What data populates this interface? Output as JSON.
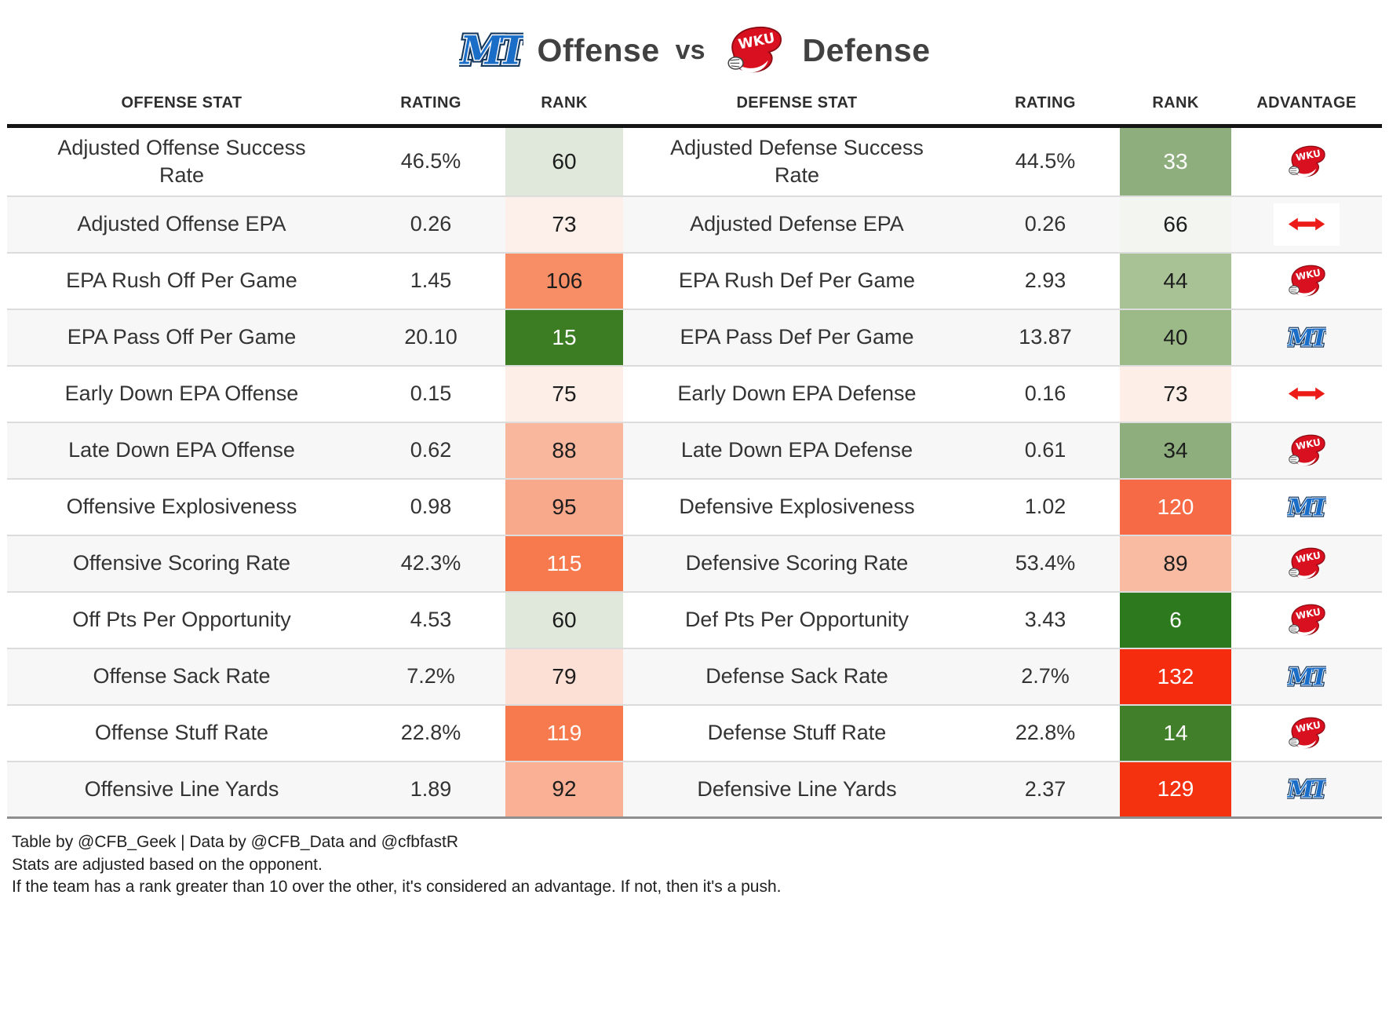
{
  "title": {
    "offense_label": "Offense",
    "vs_label": "vs",
    "defense_label": "Defense",
    "team1": "MT",
    "team2": "WKU"
  },
  "colors": {
    "mt_blue": "#1b6ec8",
    "wku_red": "#d8101f",
    "push_arrow_red": "#ed1b18",
    "row_stripe": "#f7f7f7",
    "header_rule": "#141414"
  },
  "table": {
    "columns": [
      "OFFENSE STAT",
      "RATING",
      "RANK",
      "DEFENSE STAT",
      "RATING",
      "RANK",
      "ADVANTAGE"
    ],
    "rows": [
      {
        "offense": {
          "stat": "Adjusted Offense Success Rate",
          "rating": "46.5%",
          "rank": "60",
          "rank_bg": "#dfe8da",
          "rank_text": "#1d1d1d"
        },
        "defense": {
          "stat": "Adjusted Defense Success Rate",
          "rating": "44.5%",
          "rank": "33",
          "rank_bg": "#8fae7e",
          "rank_text": "#ffffff"
        },
        "advantage": "WKU"
      },
      {
        "offense": {
          "stat": "Adjusted Offense EPA",
          "rating": "0.26",
          "rank": "73",
          "rank_bg": "#fdefe9",
          "rank_text": "#1d1d1d"
        },
        "defense": {
          "stat": "Adjusted Defense EPA",
          "rating": "0.26",
          "rank": "66",
          "rank_bg": "#f3f6f0",
          "rank_text": "#1d1d1d"
        },
        "advantage": "push"
      },
      {
        "offense": {
          "stat": "EPA Rush Off Per Game",
          "rating": "1.45",
          "rank": "106",
          "rank_bg": "#f78e66",
          "rank_text": "#1d1d1d"
        },
        "defense": {
          "stat": "EPA Rush Def Per Game",
          "rating": "2.93",
          "rank": "44",
          "rank_bg": "#a9c295",
          "rank_text": "#1d1d1d"
        },
        "advantage": "WKU"
      },
      {
        "offense": {
          "stat": "EPA Pass Off Per Game",
          "rating": "20.10",
          "rank": "15",
          "rank_bg": "#3c7d24",
          "rank_text": "#ffffff"
        },
        "defense": {
          "stat": "EPA Pass Def Per Game",
          "rating": "13.87",
          "rank": "40",
          "rank_bg": "#9cba88",
          "rank_text": "#1d1d1d"
        },
        "advantage": "MT"
      },
      {
        "offense": {
          "stat": "Early Down EPA Offense",
          "rating": "0.15",
          "rank": "75",
          "rank_bg": "#fdeee7",
          "rank_text": "#1d1d1d"
        },
        "defense": {
          "stat": "Early Down EPA Defense",
          "rating": "0.16",
          "rank": "73",
          "rank_bg": "#fdeee7",
          "rank_text": "#1d1d1d"
        },
        "advantage": "push"
      },
      {
        "offense": {
          "stat": "Late Down EPA Offense",
          "rating": "0.62",
          "rank": "88",
          "rank_bg": "#f9b89e",
          "rank_text": "#1d1d1d"
        },
        "defense": {
          "stat": "Late Down EPA Defense",
          "rating": "0.61",
          "rank": "34",
          "rank_bg": "#8fae7e",
          "rank_text": "#1d1d1d"
        },
        "advantage": "WKU"
      },
      {
        "offense": {
          "stat": "Offensive Explosiveness",
          "rating": "0.98",
          "rank": "95",
          "rank_bg": "#f8a98c",
          "rank_text": "#1d1d1d"
        },
        "defense": {
          "stat": "Defensive Explosiveness",
          "rating": "1.02",
          "rank": "120",
          "rank_bg": "#f66a45",
          "rank_text": "#ffffff"
        },
        "advantage": "MT"
      },
      {
        "offense": {
          "stat": "Offensive Scoring Rate",
          "rating": "42.3%",
          "rank": "115",
          "rank_bg": "#f67a4e",
          "rank_text": "#ffffff"
        },
        "defense": {
          "stat": "Defensive Scoring Rate",
          "rating": "53.4%",
          "rank": "89",
          "rank_bg": "#f9bba2",
          "rank_text": "#1d1d1d"
        },
        "advantage": "WKU"
      },
      {
        "offense": {
          "stat": "Off Pts Per Opportunity",
          "rating": "4.53",
          "rank": "60",
          "rank_bg": "#dfe8da",
          "rank_text": "#1d1d1d"
        },
        "defense": {
          "stat": "Def Pts Per Opportunity",
          "rating": "3.43",
          "rank": "6",
          "rank_bg": "#2d7a1e",
          "rank_text": "#ffffff"
        },
        "advantage": "WKU"
      },
      {
        "offense": {
          "stat": "Offense Sack Rate",
          "rating": "7.2%",
          "rank": "79",
          "rank_bg": "#fcdfd5",
          "rank_text": "#1d1d1d"
        },
        "defense": {
          "stat": "Defense Sack Rate",
          "rating": "2.7%",
          "rank": "132",
          "rank_bg": "#f52c0e",
          "rank_text": "#ffffff"
        },
        "advantage": "MT"
      },
      {
        "offense": {
          "stat": "Offense Stuff Rate",
          "rating": "22.8%",
          "rank": "119",
          "rank_bg": "#f67a4e",
          "rank_text": "#ffffff"
        },
        "defense": {
          "stat": "Defense Stuff Rate",
          "rating": "22.8%",
          "rank": "14",
          "rank_bg": "#417f2a",
          "rank_text": "#ffffff"
        },
        "advantage": "WKU"
      },
      {
        "offense": {
          "stat": "Offensive Line Yards",
          "rating": "1.89",
          "rank": "92",
          "rank_bg": "#f9b095",
          "rank_text": "#1d1d1d"
        },
        "defense": {
          "stat": "Defensive Line Yards",
          "rating": "2.37",
          "rank": "129",
          "rank_bg": "#f5320f",
          "rank_text": "#ffffff"
        },
        "advantage": "MT"
      }
    ]
  },
  "footer": {
    "line1": "Table by @CFB_Geek | Data by @CFB_Data and @cfbfastR",
    "line2": "Stats are adjusted based on the opponent.",
    "line3": "If the team has a rank greater than 10 over the other, it's considered an advantage. If not, then it's a push."
  }
}
